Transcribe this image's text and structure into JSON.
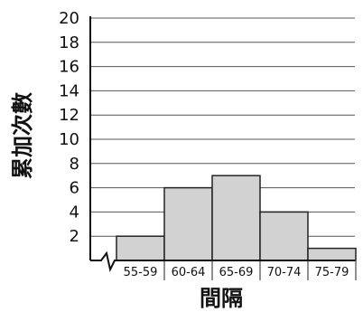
{
  "chart_data": {
    "type": "bar",
    "categories": [
      "55-59",
      "60-64",
      "65-69",
      "70-74",
      "75-79"
    ],
    "values": [
      2,
      6,
      7,
      4,
      1
    ],
    "xlabel": "間隔",
    "ylabel": "累加次數",
    "yticks": [
      "2",
      "4",
      "6",
      "8",
      "10",
      "12",
      "14",
      "16",
      "18",
      "20"
    ],
    "ylim": [
      0,
      20
    ],
    "grid": true,
    "x_axis_break": true,
    "bar_color": "#d2d2d2"
  }
}
